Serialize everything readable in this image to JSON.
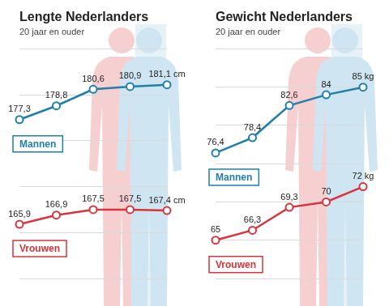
{
  "chart_data": [
    {
      "type": "line",
      "title": "Lengte Nederlanders",
      "subtitle": "20 jaar en ouder",
      "categories": [
        null,
        null,
        null,
        null,
        null
      ],
      "series": [
        {
          "name": "Mannen",
          "color": "#1f7fa8",
          "values": [
            177.3,
            178.8,
            180.6,
            180.9,
            181.1
          ],
          "value_labels": [
            "177,3",
            "178,8",
            "180,6",
            "180,9",
            "181,1 cm"
          ]
        },
        {
          "name": "Vrouwen",
          "color": "#d7343c",
          "values": [
            165.9,
            166.9,
            167.5,
            167.5,
            167.4
          ],
          "value_labels": [
            "165,9",
            "166,9",
            "167,5",
            "167,5",
            "167,4 cm"
          ]
        }
      ],
      "ylim": [
        160,
        185
      ],
      "yticks": [
        160,
        165,
        170,
        175,
        180,
        185
      ],
      "grid": true,
      "tick_labels": false,
      "data_labels": true,
      "marker": "circle"
    },
    {
      "type": "line",
      "title": "Gewicht Nederlanders",
      "subtitle": "20 jaar en ouder",
      "categories": [
        null,
        null,
        null,
        null,
        null
      ],
      "series": [
        {
          "name": "Mannen",
          "color": "#1f7fa8",
          "values": [
            76.4,
            78.4,
            82.6,
            84,
            85
          ],
          "value_labels": [
            "76,4",
            "78,4",
            "82,6",
            "84",
            "85 kg"
          ]
        },
        {
          "name": "Vrouwen",
          "color": "#d7343c",
          "values": [
            65,
            66.3,
            69.3,
            70,
            72
          ],
          "value_labels": [
            "65",
            "66,3",
            "69,3",
            "70",
            "72 kg"
          ]
        }
      ],
      "ylim": [
        60,
        90
      ],
      "yticks": [
        60,
        65,
        70,
        75,
        80,
        85,
        90
      ],
      "grid": true,
      "tick_labels": false,
      "data_labels": true,
      "marker": "circle"
    }
  ]
}
